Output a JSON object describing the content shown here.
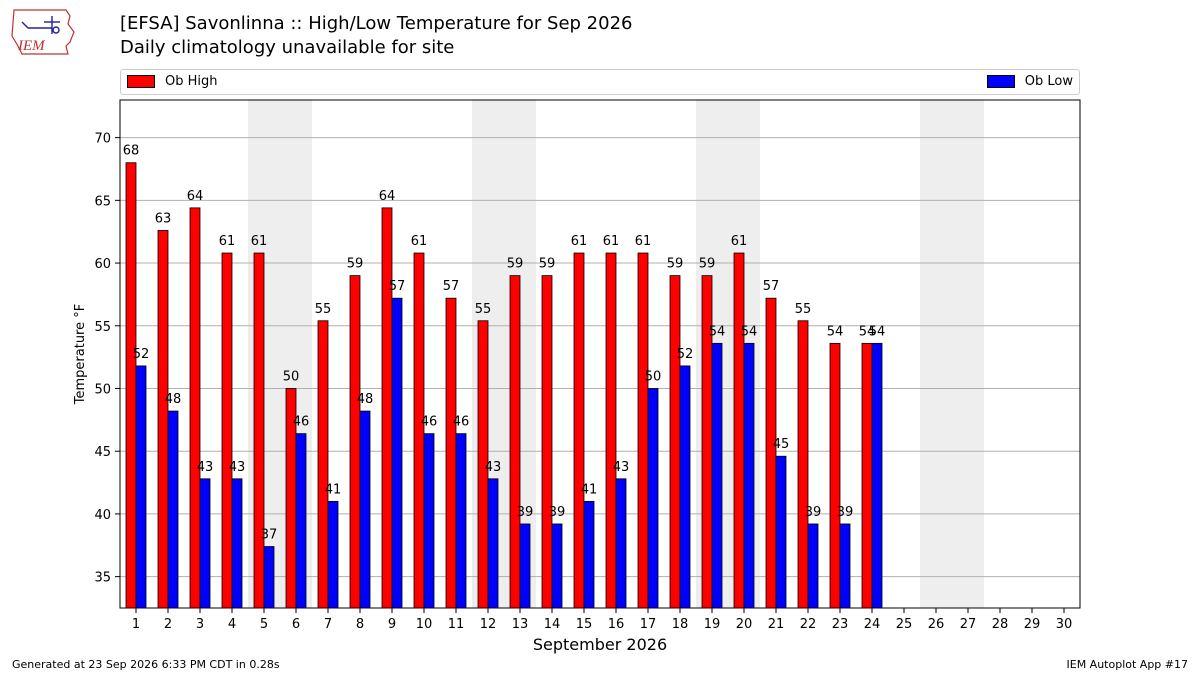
{
  "header": {
    "title": "[EFSA] Savonlinna :: High/Low Temperature for Sep 2026",
    "subtitle": "Daily climatology unavailable for site",
    "logo_text": "IEM"
  },
  "legend": {
    "high_label": "Ob High",
    "low_label": "Ob Low",
    "placement": "top, above plot"
  },
  "footer": {
    "generated": "Generated at 23 Sep 2026 6:33 PM CDT in 0.28s",
    "app": "IEM Autoplot App #17"
  },
  "colors": {
    "high": "#ff0000",
    "low": "#0000ff",
    "weekend_shade": "#eeeeee",
    "grid": "#b0b0b0"
  },
  "chart_data": {
    "type": "bar",
    "title": "[EFSA] Savonlinna :: High/Low Temperature for Sep 2026",
    "subtitle": "Daily climatology unavailable for site",
    "xlabel": "September 2026",
    "ylabel": "Temperature °F",
    "categories": [
      "1",
      "2",
      "3",
      "4",
      "5",
      "6",
      "7",
      "8",
      "9",
      "10",
      "11",
      "12",
      "13",
      "14",
      "15",
      "16",
      "17",
      "18",
      "19",
      "20",
      "21",
      "22",
      "23",
      "24",
      "25",
      "26",
      "27",
      "28",
      "29",
      "30"
    ],
    "series": [
      {
        "name": "Ob High",
        "color": "#ff0000",
        "values": [
          68,
          63,
          64,
          61,
          61,
          50,
          55,
          59,
          64,
          61,
          57,
          55,
          59,
          59,
          61,
          61,
          61,
          59,
          59,
          61,
          57,
          55,
          54,
          54,
          null,
          null,
          null,
          null,
          null,
          null
        ],
        "plotted": [
          68,
          62.6,
          64.4,
          60.8,
          60.8,
          50,
          55.4,
          59,
          64.4,
          60.8,
          57.2,
          55.4,
          59,
          59,
          60.8,
          60.8,
          60.8,
          59,
          59,
          60.8,
          57.2,
          55.4,
          53.6,
          53.6,
          null,
          null,
          null,
          null,
          null,
          null
        ]
      },
      {
        "name": "Ob Low",
        "color": "#0000ff",
        "values": [
          52,
          48,
          43,
          43,
          37,
          46,
          41,
          48,
          57,
          46,
          46,
          43,
          39,
          39,
          41,
          43,
          50,
          52,
          54,
          54,
          45,
          39,
          39,
          54,
          null,
          null,
          null,
          null,
          null,
          null
        ],
        "plotted": [
          51.8,
          48.2,
          42.8,
          42.8,
          37.4,
          46.4,
          41,
          48.2,
          57.2,
          46.4,
          46.4,
          42.8,
          39.2,
          39.2,
          41,
          42.8,
          50,
          51.8,
          53.6,
          53.6,
          44.6,
          39.2,
          39.2,
          53.6,
          null,
          null,
          null,
          null,
          null,
          null
        ]
      }
    ],
    "ylim": [
      32.5,
      73
    ],
    "yticks": [
      35,
      40,
      45,
      50,
      55,
      60,
      65,
      70
    ],
    "shaded_weekend_days": [
      5,
      6,
      12,
      13,
      19,
      20,
      26,
      27
    ],
    "grid": "horizontal",
    "legend": "top"
  }
}
